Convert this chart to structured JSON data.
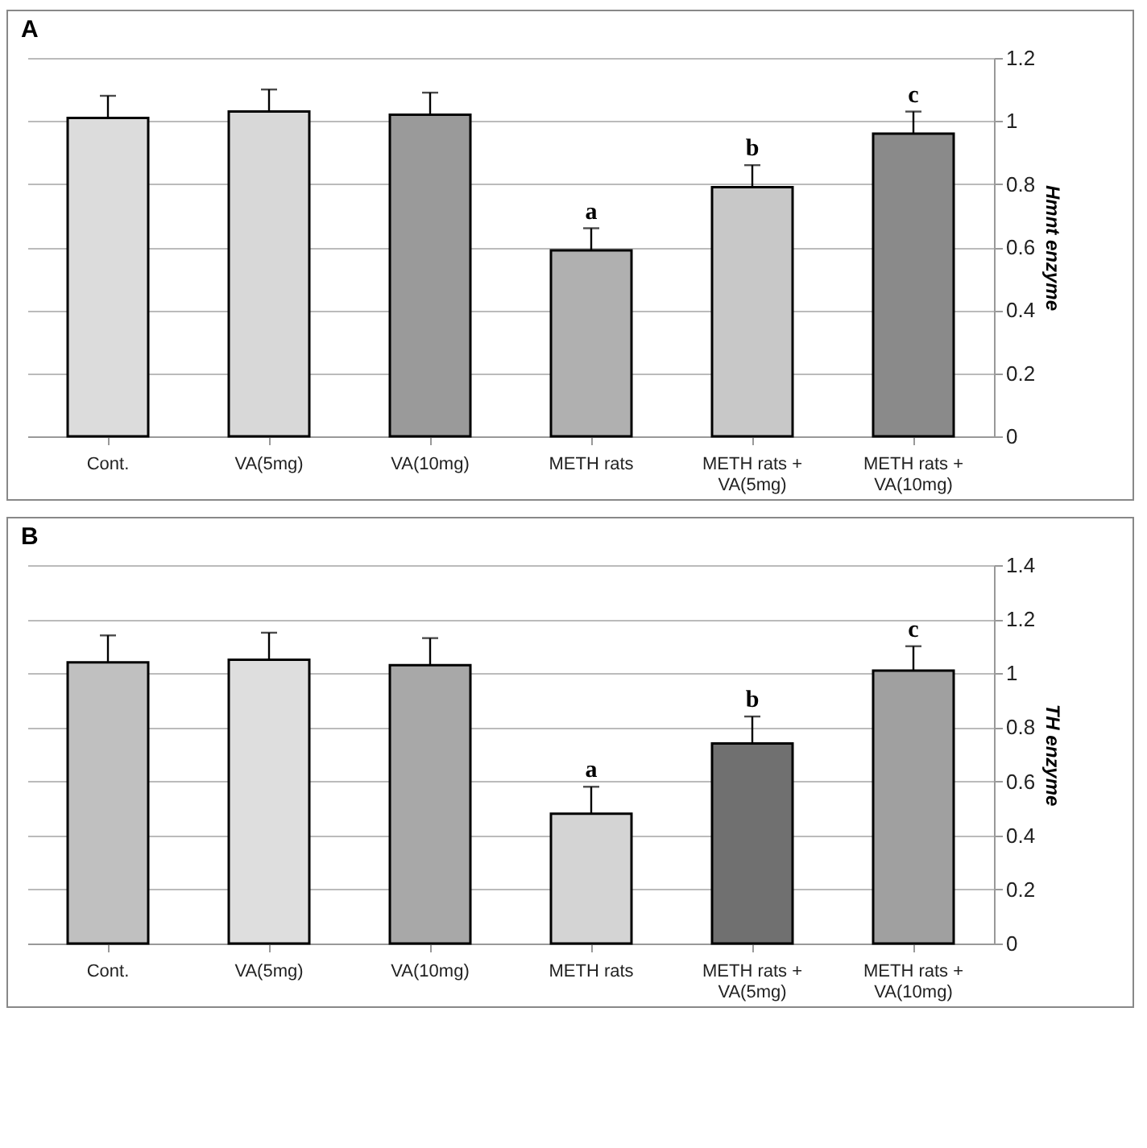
{
  "chart_data": [
    {
      "type": "bar",
      "title": "A",
      "ylabel": "Hmnt enzyme",
      "categories": [
        "Cont.",
        "VA(5mg)",
        "VA(10mg)",
        "METH rats",
        "METH rats + VA(5mg)",
        "METH rats + VA(10mg)"
      ],
      "values": [
        1.01,
        1.03,
        1.02,
        0.59,
        0.79,
        0.96
      ],
      "errors": [
        0.07,
        0.07,
        0.07,
        0.07,
        0.07,
        0.07
      ],
      "colors": [
        "#dcdcdc",
        "#d8d8d8",
        "#9a9a9a",
        "#b0b0b0",
        "#c8c8c8",
        "#8a8a8a"
      ],
      "ylim": [
        0,
        1.2
      ],
      "yticks": [
        0,
        0.2,
        0.4,
        0.6,
        0.8,
        1,
        1.2
      ],
      "grid": "y",
      "annotations": [
        {
          "text": "a",
          "x": "METH rats",
          "y": 0.66
        },
        {
          "text": "b",
          "x": "METH rats + VA(5mg)",
          "y": 0.86
        },
        {
          "text": "c",
          "x": "METH rats + VA(10mg)",
          "y": 1.03
        }
      ]
    },
    {
      "type": "bar",
      "title": "B",
      "ylabel": "TH enzyme",
      "categories": [
        "Cont.",
        "VA(5mg)",
        "VA(10mg)",
        "METH rats",
        "METH rats + VA(5mg)",
        "METH rats + VA(10mg)"
      ],
      "values": [
        1.04,
        1.05,
        1.03,
        0.48,
        0.74,
        1.01
      ],
      "errors": [
        0.1,
        0.1,
        0.1,
        0.1,
        0.1,
        0.09
      ],
      "colors": [
        "#c0c0c0",
        "#dedede",
        "#a8a8a8",
        "#d4d4d4",
        "#707070",
        "#a0a0a0"
      ],
      "ylim": [
        0,
        1.4
      ],
      "yticks": [
        0,
        0.2,
        0.4,
        0.6,
        0.8,
        1,
        1.2,
        1.4
      ],
      "grid": "y",
      "annotations": [
        {
          "text": "a",
          "x": "METH rats",
          "y": 0.58
        },
        {
          "text": "b",
          "x": "METH rats + VA(5mg)",
          "y": 0.84
        },
        {
          "text": "c",
          "x": "METH rats + VA(10mg)",
          "y": 1.1
        }
      ]
    }
  ]
}
